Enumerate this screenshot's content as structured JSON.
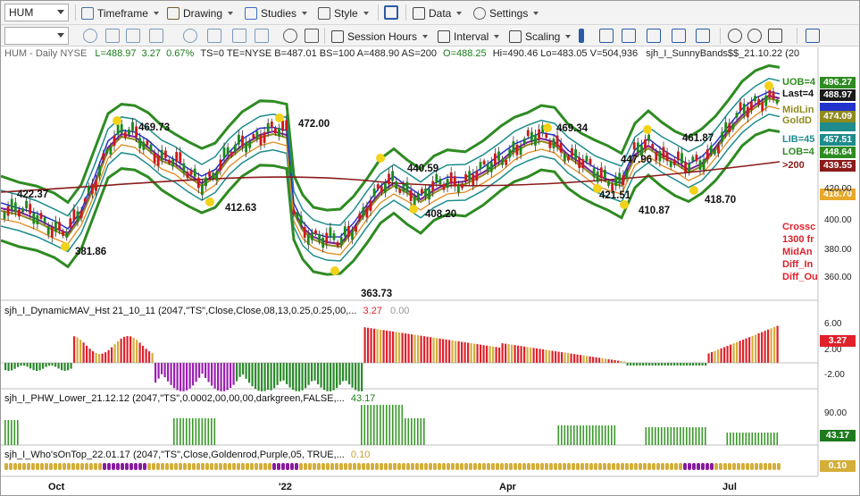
{
  "toolbar1": {
    "symbol": "HUM",
    "timeframe": "Timeframe",
    "drawing": "Drawing",
    "studies": "Studies",
    "style": "Style",
    "data": "Data",
    "settings": "Settings"
  },
  "toolbar2": {
    "session_hours": "Session Hours",
    "interval": "Interval",
    "scaling": "Scaling"
  },
  "header": {
    "symbol_line": "HUM - Daily  NYSE",
    "last": "L=488.97",
    "change": "3.27",
    "pct": "0.67%",
    "rest": "TS=0  TE=NYSE  B=487.01  BS=100  A=488.90  AS=200",
    "open": "O=488.25",
    "hlv": "Hi=490.46  Lo=483.05  V=504,936",
    "study": "sjh_I_SunnyBands$$_21.10.22 (20"
  },
  "annotations": [
    {
      "text": "469.73"
    },
    {
      "text": "472.00"
    },
    {
      "text": "469.34"
    },
    {
      "text": "422.37"
    },
    {
      "text": "412.63"
    },
    {
      "text": "381.86"
    },
    {
      "text": "363.73"
    },
    {
      "text": "440.59"
    },
    {
      "text": "408.20"
    },
    {
      "text": "447.96"
    },
    {
      "text": "421.51"
    },
    {
      "text": "410.87"
    },
    {
      "text": "461.87"
    },
    {
      "text": "418.70"
    }
  ],
  "right_labels": {
    "uob": "UOB=4",
    "last": "Last=4",
    "midlin": "MidLin",
    "gold": "GoldD",
    "lib": "LIB=45",
    "lob": "LOB=4",
    "ma200": ">200",
    "crossover": [
      "Crossc",
      "1300 fr",
      "MidAn",
      "Diff_In",
      "Diff_Ou"
    ]
  },
  "price_badges": {
    "b1": "496.27",
    "b2": "488.97",
    "b3": "474.09",
    "b4": "457.51",
    "b5": "448.64",
    "b6": "439.55",
    "b7": "418.70"
  },
  "price_axis": [
    "420.00",
    "400.00",
    "380.00",
    "360.00"
  ],
  "study2": {
    "label": "sjh_I_DynamicMAV_Hst 21_10_11 (2047,\"TS\",Close,Close,08,13,0.25,0.25,00,...",
    "v1": "3.27",
    "v2": "0.00",
    "axis": [
      "6.00",
      "2.00",
      "-2.00"
    ],
    "badge": "3.27"
  },
  "study3": {
    "label": "sjh_I_PHW_Lower_21.12.12 (2047,\"TS\",0.0002,00,00,00,darkgreen,FALSE,...",
    "v1": "43.17",
    "axis": [
      "90.00"
    ],
    "badge": "43.17"
  },
  "study4": {
    "label": "sjh_I_Who'sOnTop_22.01.17 (2047,\"TS\",Close,Goldenrod,Purple,05, TRUE,...",
    "v1": "0.10",
    "badge": "0.10"
  },
  "months": [
    "Oct",
    "'22",
    "Apr",
    "Jul"
  ],
  "colors": {
    "green_band": "#2e8b22",
    "teal_band": "#1e8c8c",
    "blue_ma": "#2233cc",
    "purple_ma": "#7a1fa0",
    "olive_ma": "#8f8a1e",
    "orange_ma": "#e08a1e",
    "maroon_ma": "#8b1a1a",
    "red_hist": "#e0202a",
    "gold_hist": "#d4ae3a",
    "purple_hist": "#9b1fb0",
    "green_hist": "#2a8a2a"
  }
}
